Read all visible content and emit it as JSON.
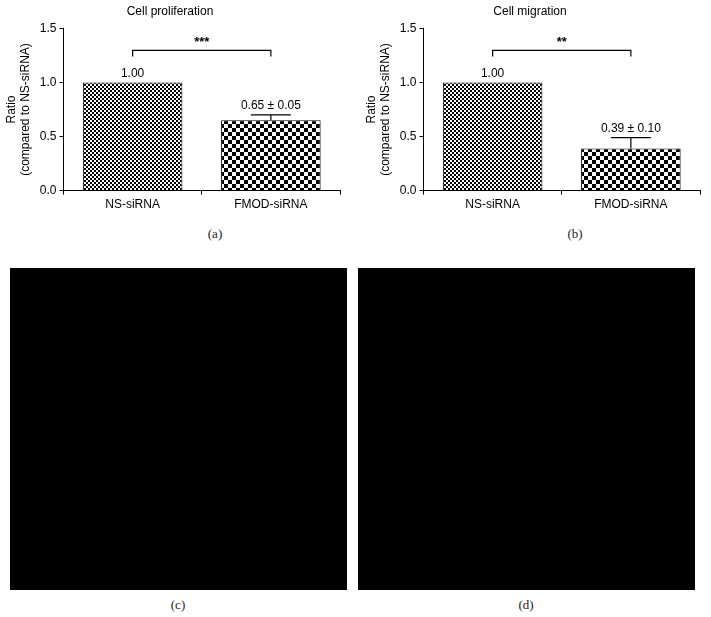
{
  "chart_data": [
    {
      "type": "bar",
      "title": "Cell proliferation",
      "panel": "(a)",
      "y_label": [
        "Ratio",
        "(compared to NS-siRNA)"
      ],
      "categories": [
        "NS-siRNA",
        "FMOD-siRNA"
      ],
      "values": [
        1.0,
        0.65
      ],
      "errors": [
        0,
        0.05
      ],
      "value_labels": [
        "1.00",
        "0.65 ± 0.05"
      ],
      "data_labels": true,
      "color": "#000000",
      "ylim": [
        0,
        1.5
      ],
      "yticks": [
        {
          "value": 0,
          "label": "0.0"
        },
        {
          "value": 0.5,
          "label": "0.5"
        },
        {
          "value": 1,
          "label": "1.0"
        },
        {
          "value": 1.5,
          "label": "1.5"
        }
      ],
      "grid": false,
      "annotations": [
        {
          "text": "***",
          "between": [
            "NS-siRNA",
            "FMOD-siRNA"
          ]
        }
      ]
    },
    {
      "type": "bar",
      "title": "Cell migration",
      "panel": "(b)",
      "y_label": [
        "Ratio",
        "(compared to NS-siRNA)"
      ],
      "categories": [
        "NS-siRNA",
        "FMOD-siRNA"
      ],
      "values": [
        1.0,
        0.39
      ],
      "errors": [
        0,
        0.1
      ],
      "value_labels": [
        "1.00",
        "0.39 ± 0.10"
      ],
      "data_labels": true,
      "color": "#000000",
      "ylim": [
        0,
        1.5
      ],
      "yticks": [
        {
          "value": 0,
          "label": "0.0"
        },
        {
          "value": 0.5,
          "label": "0.5"
        },
        {
          "value": 1,
          "label": "1.0"
        },
        {
          "value": 1.5,
          "label": "1.5"
        }
      ],
      "grid": false,
      "annotations": [
        {
          "text": "**",
          "between": [
            "NS-siRNA",
            "FMOD-siRNA"
          ]
        }
      ]
    }
  ],
  "images": [
    {
      "label": "(c)"
    },
    {
      "label": "(d)"
    }
  ]
}
